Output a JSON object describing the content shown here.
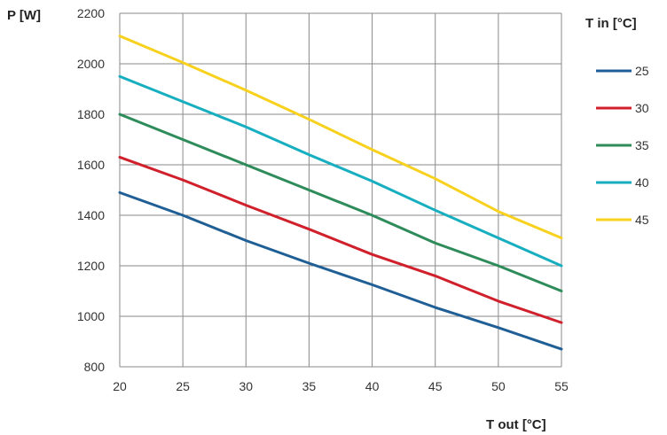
{
  "chart_data": {
    "type": "line",
    "ylabel": "P [W]",
    "xlabel": "T out [°C]",
    "legend_title": "T in [°C]",
    "legend_position": "right",
    "grid": true,
    "xlim": [
      20,
      55
    ],
    "ylim": [
      800,
      2200
    ],
    "x_ticks": [
      20,
      25,
      30,
      35,
      40,
      45,
      50,
      55
    ],
    "y_ticks": [
      800,
      1000,
      1200,
      1400,
      1600,
      1800,
      2000,
      2200
    ],
    "x": [
      20,
      25,
      30,
      35,
      40,
      45,
      50,
      55
    ],
    "series": [
      {
        "name": "25",
        "color": "#1f5f95",
        "values": [
          1490,
          1400,
          1300,
          1210,
          1125,
          1035,
          955,
          870
        ]
      },
      {
        "name": "30",
        "color": "#d0202c",
        "values": [
          1630,
          1540,
          1440,
          1345,
          1245,
          1160,
          1060,
          975
        ]
      },
      {
        "name": "35",
        "color": "#2e8b5a",
        "values": [
          1800,
          1700,
          1600,
          1500,
          1400,
          1290,
          1200,
          1100
        ]
      },
      {
        "name": "40",
        "color": "#17aec0",
        "values": [
          1950,
          1850,
          1750,
          1640,
          1535,
          1420,
          1310,
          1200
        ]
      },
      {
        "name": "45",
        "color": "#f7d11e",
        "values": [
          2110,
          2005,
          1895,
          1780,
          1660,
          1545,
          1415,
          1310
        ]
      }
    ]
  }
}
